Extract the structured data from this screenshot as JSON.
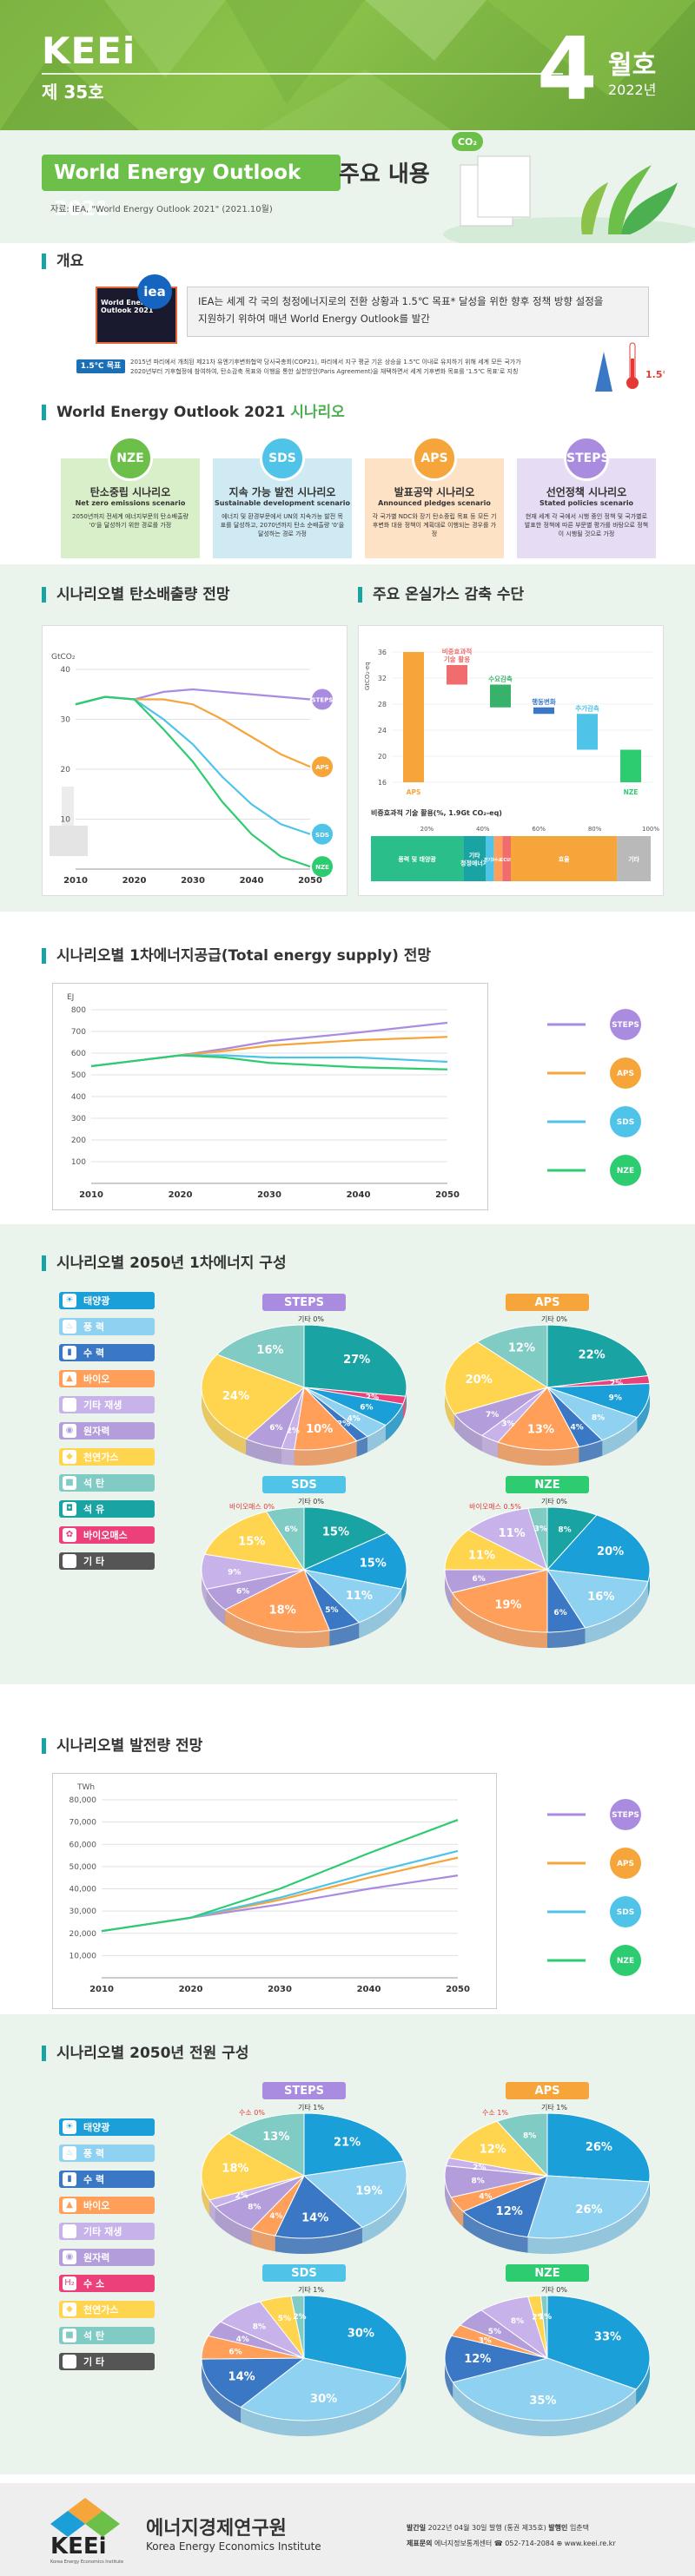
{
  "header": {
    "brand": "KEEi",
    "issue": "제 35호",
    "month_num": "4",
    "month_label": "월호",
    "year": "2022년"
  },
  "hero": {
    "title": "World Energy Outlook 2021",
    "title_suffix": "주요 내용",
    "co2_badge": "CO₂",
    "source": "자료: IEA, \"World Energy Outlook 2021\" (2021.10월)"
  },
  "overview": {
    "section_title": "개요",
    "cover_text": "World Energy Outlook 2021",
    "iea_logo": "iea",
    "line1": "IEA는 세계 각 국의 청정에너지로의 전환 상황과 1.5℃ 목표* 달성을 위한 향후 정책 방향 설정을",
    "line2": "지원하기 위하여 매년 World Energy Outlook를 발간",
    "badge": "1.5℃ 목표",
    "note1": "2015년 파리에서 개최된 제21차 유엔기후변화협약 당사국총회(COP21), 파리에서 지구 평균 기온 상승을 1.5℃ 이내로 유지하기 위해 세계 모든 국가가",
    "note2": "2020년부터 기후협정에 참여하여, 탄소감축 목표와 이행을 통한 실천방안(Paris Agreement)을 채택하면서 세계 기후변화 목표를 '1.5℃ 목표'로 지칭",
    "temp": "1.5℃"
  },
  "scenarios": {
    "section_title": "World Energy Outlook 2021",
    "section_suffix": "시나리오",
    "cards": [
      {
        "badge": "NZE",
        "name": "탄소중립 시나리오",
        "en": "Net zero emissions scenario",
        "desc": "2050년까지 전세계 에너지부문의 탄소배출량 '0'을 달성하기 위한 경로를 가정",
        "bg": "#d9efc9",
        "color": "#6cc04a"
      },
      {
        "badge": "SDS",
        "name": "지속 가능 발전 시나리오",
        "en": "Sustainable development scenario",
        "desc": "에너지 및 환경부문에서 UN의 지속가능 발전 목표를 달성하고, 2070년까지 탄소 순배출량 '0'을 달성하는 경로 가정",
        "bg": "#cfeaf2",
        "color": "#4fc3e8"
      },
      {
        "badge": "APS",
        "name": "발표공약 시나리오",
        "en": "Announced pledges scenario",
        "desc": "각 국가별 NDC와 장기 탄소중립 목표 등 모든 기후변화 대응 정책이 계획대로 이행되는 경우를 가정",
        "bg": "#fde2c6",
        "color": "#f5a53a"
      },
      {
        "badge": "STEPS",
        "name": "선언정책 시나리오",
        "en": "Stated policies scenario",
        "desc": "현재 세계 각 국에서 시행 중인 정책 및 국가별로 발표한 정책에 따른 부문별 평가를 바탕으로 정책이 시행될 것으로 가정",
        "bg": "#e6dcf3",
        "color": "#a98be0"
      }
    ]
  },
  "emissions": {
    "section_title": "시나리오별 탄소배출량 전망",
    "chart_data": {
      "type": "line",
      "unit": "GtCO₂",
      "x": [
        2010,
        2015,
        2020,
        2025,
        2030,
        2035,
        2040,
        2045,
        2050
      ],
      "ylim": [
        0,
        40
      ],
      "yticks": [
        10,
        20,
        30,
        40
      ],
      "xticks": [
        2010,
        2020,
        2030,
        2040,
        2050
      ],
      "series": [
        {
          "name": "STEPS",
          "color": "#a98be0",
          "values": [
            33,
            34.5,
            34,
            35.5,
            36,
            35.5,
            35,
            34.5,
            34
          ]
        },
        {
          "name": "APS",
          "color": "#f5a53a",
          "values": [
            33,
            34.5,
            34,
            34,
            33,
            30,
            26.5,
            23,
            20.5
          ]
        },
        {
          "name": "SDS",
          "color": "#4fc3e8",
          "values": [
            33,
            34.5,
            34,
            30,
            25,
            18.5,
            13,
            9,
            7
          ]
        },
        {
          "name": "NZE",
          "color": "#2ecc71",
          "values": [
            33,
            34.5,
            34,
            28,
            21.5,
            13.5,
            7,
            2.5,
            0.5
          ]
        }
      ]
    }
  },
  "measures": {
    "section_title": "주요 온실가스 감축 수단",
    "chart_data": {
      "type": "bar",
      "unit": "GtCO₂-eq",
      "ylim": [
        16,
        36
      ],
      "yticks": [
        16,
        20,
        24,
        28,
        32,
        36
      ],
      "categories": [
        "APS",
        "비중효과적 기술 활용",
        "수요감축",
        "행동변화",
        "추가감축",
        "NZE"
      ],
      "labels": [
        "APS",
        "비중효과적\n기술 활용",
        "수요감축",
        "행동변화",
        "추가감축",
        "NZE"
      ],
      "start": [
        16,
        34,
        31,
        27.5,
        26.5,
        21
      ],
      "end": [
        36,
        31,
        27.5,
        26.5,
        21,
        16
      ],
      "colors": [
        "#f5a53a",
        "#f16d6d",
        "#37b26a",
        "#3a78c6",
        "#4fc3e8",
        "#2ecc71"
      ]
    },
    "tech_title": "비중효과적 기술 활용(%, 1.9Gt CO₂-eq)",
    "tech_ticks": [
      "20%",
      "40%",
      "60%",
      "80%",
      "100%"
    ],
    "tech_chart_data": {
      "type": "bar",
      "orientation": "stacked-horizontal",
      "categories": [
        "풍력 및 태양광",
        "기타 청정에너지",
        "전기화",
        "수소",
        "CCUS",
        "효율",
        "기타"
      ],
      "labels": [
        "풍력 및 태양광",
        "기타\n청정에너지",
        "전기화",
        "수소",
        "CCUS",
        "효율",
        "기타"
      ],
      "values": [
        33,
        8,
        3,
        3,
        3,
        38,
        12
      ],
      "colors": [
        "#2abf8a",
        "#1aa3a3",
        "#4fc3e8",
        "#ff9f59",
        "#f16d6d",
        "#f5a53a",
        "#b9b9b9"
      ]
    }
  },
  "supply": {
    "section_title": "시나리오별 1차에너지공급(Total energy supply) 전망",
    "chart_data": {
      "type": "line",
      "unit": "EJ",
      "x": [
        2010,
        2020,
        2025,
        2030,
        2040,
        2050
      ],
      "ylim": [
        0,
        800
      ],
      "yticks": [
        100,
        200,
        300,
        400,
        500,
        600,
        700,
        800
      ],
      "xticks": [
        2010,
        2020,
        2030,
        2040,
        2050
      ],
      "series": [
        {
          "name": "STEPS",
          "color": "#a98be0",
          "values": [
            540,
            590,
            620,
            655,
            695,
            740
          ]
        },
        {
          "name": "APS",
          "color": "#f5a53a",
          "values": [
            540,
            590,
            610,
            635,
            660,
            675
          ]
        },
        {
          "name": "SDS",
          "color": "#4fc3e8",
          "values": [
            540,
            590,
            590,
            580,
            580,
            560
          ]
        },
        {
          "name": "NZE",
          "color": "#2ecc71",
          "values": [
            540,
            590,
            580,
            555,
            535,
            525
          ]
        }
      ]
    }
  },
  "source_legend": [
    {
      "label": "태양광",
      "color": "#1a9fd8",
      "icon": "sun-icon",
      "glyph": "☀"
    },
    {
      "label": "풍 력",
      "color": "#8fd1f0",
      "icon": "wind-icon",
      "glyph": "♨"
    },
    {
      "label": "수 력",
      "color": "#3a78c6",
      "icon": "hydro-icon",
      "glyph": "▮"
    },
    {
      "label": "바이오",
      "color": "#ff9f59",
      "icon": "bio-icon",
      "glyph": "▲"
    },
    {
      "label": "기타 재생",
      "color": "#c7b2ea",
      "icon": "renewable-icon",
      "glyph": ""
    },
    {
      "label": "원자력",
      "color": "#b39ddb",
      "icon": "nuclear-icon",
      "glyph": "◉"
    },
    {
      "label": "천연가스",
      "color": "#ffd54f",
      "icon": "gas-icon",
      "glyph": "◆"
    },
    {
      "label": "석 탄",
      "color": "#80cbc4",
      "icon": "coal-icon",
      "glyph": "■"
    },
    {
      "label": "석 유",
      "color": "#1aa3a3",
      "icon": "oil-icon",
      "glyph": "◘"
    },
    {
      "label": "바이오매스",
      "color": "#ec407a",
      "icon": "biomass-icon",
      "glyph": "✿"
    },
    {
      "label": "기 타",
      "color": "#555555",
      "icon": "other-icon",
      "glyph": ""
    }
  ],
  "mix2050": {
    "section_title": "시나리오별 2050년 1차에너지 구성",
    "chart_data": [
      {
        "type": "pie",
        "title": "STEPS",
        "title_color": "#a98be0",
        "extra": "기타 0%",
        "categories": [
          "석유",
          "바이오매스",
          "태양광",
          "풍력",
          "수력",
          "바이오",
          "기타재생",
          "원자력",
          "천연가스",
          "석탄"
        ],
        "values": [
          27,
          2,
          6,
          4,
          2,
          10,
          2,
          6,
          24,
          16
        ],
        "labels": [
          "27%",
          "2%",
          "6%",
          "4%",
          "2%",
          "10%",
          "2%",
          "6%",
          "24%",
          "16%"
        ],
        "colors": [
          "#1aa3a3",
          "#ec407a",
          "#1a9fd8",
          "#8fd1f0",
          "#3a78c6",
          "#ff9f59",
          "#c7b2ea",
          "#b39ddb",
          "#ffd54f",
          "#80cbc4"
        ]
      },
      {
        "type": "pie",
        "title": "APS",
        "title_color": "#f5a53a",
        "extra": "기타 0%",
        "categories": [
          "석유",
          "바이오매스",
          "태양광",
          "풍력",
          "수력",
          "바이오",
          "기타재생",
          "원자력",
          "천연가스",
          "석탄"
        ],
        "values": [
          22,
          2,
          9,
          8,
          4,
          13,
          3,
          7,
          20,
          12
        ],
        "labels": [
          "22%",
          "2%",
          "9%",
          "8%",
          "4%",
          "13%",
          "3%",
          "7%",
          "20%",
          "12%"
        ],
        "colors": [
          "#1aa3a3",
          "#ec407a",
          "#1a9fd8",
          "#8fd1f0",
          "#3a78c6",
          "#ff9f59",
          "#c7b2ea",
          "#b39ddb",
          "#ffd54f",
          "#80cbc4"
        ]
      },
      {
        "type": "pie",
        "title": "SDS",
        "title_color": "#4fc3e8",
        "extra": "기타 0%",
        "extra2": "바이오매스 0%",
        "categories": [
          "석유",
          "태양광",
          "풍력",
          "수력",
          "바이오",
          "원자력",
          "기타재생",
          "천연가스",
          "석탄"
        ],
        "values": [
          15,
          15,
          11,
          5,
          18,
          6,
          9,
          15,
          6
        ],
        "labels": [
          "15%",
          "15%",
          "11%",
          "5%",
          "18%",
          "6%",
          "9%",
          "15%",
          "6%"
        ],
        "colors": [
          "#1aa3a3",
          "#1a9fd8",
          "#8fd1f0",
          "#3a78c6",
          "#ff9f59",
          "#b39ddb",
          "#c7b2ea",
          "#ffd54f",
          "#80cbc4"
        ]
      },
      {
        "type": "pie",
        "title": "NZE",
        "title_color": "#2ecc71",
        "extra": "기타 0%",
        "extra2": "바이오매스 0.5%",
        "categories": [
          "석유",
          "태양광",
          "풍력",
          "수력",
          "바이오",
          "원자력",
          "천연가스",
          "기타재생",
          "석탄"
        ],
        "values": [
          8,
          20,
          16,
          6,
          19,
          6,
          11,
          11,
          3
        ],
        "labels": [
          "8%",
          "20%",
          "16%",
          "6%",
          "19%",
          "6%",
          "11%",
          "11%",
          "3%"
        ],
        "colors": [
          "#1aa3a3",
          "#1a9fd8",
          "#8fd1f0",
          "#3a78c6",
          "#ff9f59",
          "#b39ddb",
          "#ffd54f",
          "#c7b2ea",
          "#80cbc4"
        ]
      }
    ]
  },
  "generation": {
    "section_title": "시나리오별 발전량 전망",
    "chart_data": {
      "type": "line",
      "unit": "TWh",
      "x": [
        2010,
        2020,
        2030,
        2040,
        2050
      ],
      "ylim": [
        0,
        80000
      ],
      "yticks": [
        10000,
        20000,
        30000,
        40000,
        50000,
        60000,
        70000,
        80000
      ],
      "ytick_labels": [
        "10,000",
        "20,000",
        "30,000",
        "40,000",
        "50,000",
        "60,000",
        "70,000",
        "80,000"
      ],
      "xticks": [
        2010,
        2020,
        2030,
        2040,
        2050
      ],
      "series": [
        {
          "name": "STEPS",
          "color": "#a98be0",
          "values": [
            21000,
            27000,
            33000,
            40000,
            46000
          ]
        },
        {
          "name": "APS",
          "color": "#f5a53a",
          "values": [
            21000,
            27000,
            35000,
            45000,
            54000
          ]
        },
        {
          "name": "SDS",
          "color": "#4fc3e8",
          "values": [
            21000,
            27000,
            36000,
            47000,
            57000
          ]
        },
        {
          "name": "NZE",
          "color": "#2ecc71",
          "values": [
            21000,
            27000,
            40000,
            56000,
            71000
          ]
        }
      ]
    }
  },
  "power_legend": [
    {
      "label": "태양광",
      "color": "#1a9fd8",
      "icon": "sun-icon",
      "glyph": "☀"
    },
    {
      "label": "풍 력",
      "color": "#8fd1f0",
      "icon": "wind-icon",
      "glyph": "♨"
    },
    {
      "label": "수 력",
      "color": "#3a78c6",
      "icon": "hydro-icon",
      "glyph": "▮"
    },
    {
      "label": "바이오",
      "color": "#ff9f59",
      "icon": "bio-icon",
      "glyph": "▲"
    },
    {
      "label": "기타 재생",
      "color": "#c7b2ea",
      "icon": "renewable-icon",
      "glyph": ""
    },
    {
      "label": "원자력",
      "color": "#b39ddb",
      "icon": "nuclear-icon",
      "glyph": "◉"
    },
    {
      "label": "수 소",
      "color": "#ec407a",
      "icon": "hydrogen-icon",
      "glyph": "H₂"
    },
    {
      "label": "천연가스",
      "color": "#ffd54f",
      "icon": "gas-icon",
      "glyph": "◆"
    },
    {
      "label": "석 탄",
      "color": "#80cbc4",
      "icon": "coal-icon",
      "glyph": "■"
    },
    {
      "label": "기 타",
      "color": "#555555",
      "icon": "other-icon",
      "glyph": ""
    }
  ],
  "power2050": {
    "section_title": "시나리오별 2050년 전원 구성",
    "chart_data": [
      {
        "type": "pie",
        "title": "STEPS",
        "title_color": "#a98be0",
        "extra": "기타 1%",
        "extra2": "수소 0%",
        "categories": [
          "태양광",
          "풍력",
          "수력",
          "바이오",
          "원자력",
          "천연가스",
          "석탄",
          "기타재생"
        ],
        "values": [
          21,
          19,
          14,
          4,
          8,
          2,
          18,
          13
        ],
        "labels": [
          "21%",
          "19%",
          "14%",
          "4%",
          "8%",
          "2%",
          "18%",
          "13%"
        ],
        "colors": [
          "#1a9fd8",
          "#8fd1f0",
          "#3a78c6",
          "#ff9f59",
          "#b39ddb",
          "#c7b2ea",
          "#ffd54f",
          "#80cbc4"
        ]
      },
      {
        "type": "pie",
        "title": "APS",
        "title_color": "#f5a53a",
        "extra": "기타 1%",
        "extra2": "수소 1%",
        "categories": [
          "태양광",
          "풍력",
          "수력",
          "바이오",
          "원자력",
          "기타재생",
          "천연가스",
          "석탄"
        ],
        "values": [
          26,
          26,
          12,
          4,
          8,
          2,
          12,
          8
        ],
        "labels": [
          "26%",
          "26%",
          "12%",
          "4%",
          "8%",
          "2%",
          "12%",
          "8%"
        ],
        "colors": [
          "#1a9fd8",
          "#8fd1f0",
          "#3a78c6",
          "#ff9f59",
          "#b39ddb",
          "#c7b2ea",
          "#ffd54f",
          "#80cbc4"
        ]
      },
      {
        "type": "pie",
        "title": "SDS",
        "title_color": "#4fc3e8",
        "extra": "기타 1%",
        "categories": [
          "태양광",
          "풍력",
          "수력",
          "바이오",
          "원자력",
          "기타재생",
          "천연가스",
          "석탄"
        ],
        "values": [
          30,
          30,
          14,
          6,
          4,
          8,
          5,
          2
        ],
        "labels": [
          "30%",
          "30%",
          "14%",
          "6%",
          "4%",
          "8%",
          "5%",
          "2%"
        ],
        "colors": [
          "#1a9fd8",
          "#8fd1f0",
          "#3a78c6",
          "#ff9f59",
          "#b39ddb",
          "#c7b2ea",
          "#ffd54f",
          "#80cbc4"
        ]
      },
      {
        "type": "pie",
        "title": "NZE",
        "title_color": "#2ecc71",
        "extra": "기타 0%",
        "categories": [
          "태양광",
          "풍력",
          "수력",
          "바이오",
          "원자력",
          "기타재생",
          "천연가스",
          "석탄"
        ],
        "values": [
          33,
          35,
          12,
          3,
          5,
          8,
          2,
          1
        ],
        "labels": [
          "33%",
          "35%",
          "12%",
          "3%",
          "5%",
          "8%",
          "2%",
          "1%"
        ],
        "colors": [
          "#1a9fd8",
          "#8fd1f0",
          "#3a78c6",
          "#ff9f59",
          "#b39ddb",
          "#c7b2ea",
          "#ffd54f",
          "#80cbc4"
        ]
      }
    ]
  },
  "footer": {
    "logo": "KEEi",
    "logo_sub": "Korea Energy Economics Institute",
    "org_kr": "에너지경제연구원",
    "org_en": "Korea Energy Economics Institute",
    "pub_label": "발간일",
    "pub_value": "2022년 04월 30일 발행 (통권 제35호)",
    "publisher_label": "발행인",
    "publisher_value": "임춘택",
    "producer_label": "제표문의",
    "producer_value": "에너지정보통계센터",
    "phone": "☎ 052-714-2084",
    "web": "⊕ www.keei.re.kr"
  }
}
